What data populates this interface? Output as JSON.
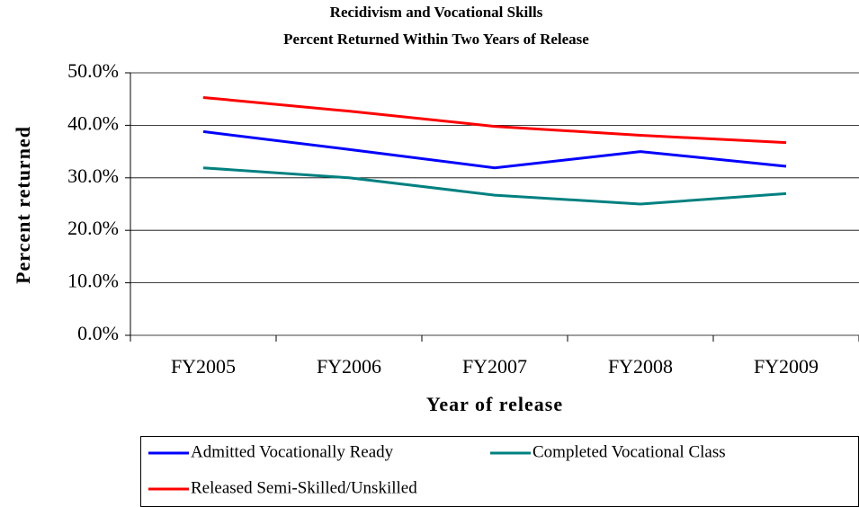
{
  "chart_data": {
    "type": "line",
    "title": "Recidivism and Vocational Skills",
    "subtitle": "Percent Returned Within Two Years of Release",
    "x_label": "Year of release",
    "y_label": "Percent returned",
    "categories": [
      "FY2005",
      "FY2006",
      "FY2007",
      "FY2008",
      "FY2009"
    ],
    "series": [
      {
        "name": "Admitted Vocationally Ready",
        "color": "#0000ff",
        "values": [
          38.8,
          35.4,
          31.9,
          35.0,
          32.2
        ]
      },
      {
        "name": "Completed Vocational Class",
        "color": "#008080",
        "values": [
          31.9,
          30.0,
          26.7,
          25.0,
          27.0
        ]
      },
      {
        "name": "Released Semi-Skilled/Unskilled",
        "color": "#ff0000",
        "values": [
          45.3,
          42.7,
          39.8,
          38.1,
          36.7
        ]
      }
    ],
    "ylim": [
      0,
      50
    ],
    "yticks": [
      {
        "value": 0,
        "label": "0.0%"
      },
      {
        "value": 10,
        "label": "10.0%"
      },
      {
        "value": 20,
        "label": "20.0%"
      },
      {
        "value": 30,
        "label": "30.0%"
      },
      {
        "value": 40,
        "label": "40.0%"
      },
      {
        "value": 50,
        "label": "50.0%"
      }
    ],
    "grid": true
  }
}
